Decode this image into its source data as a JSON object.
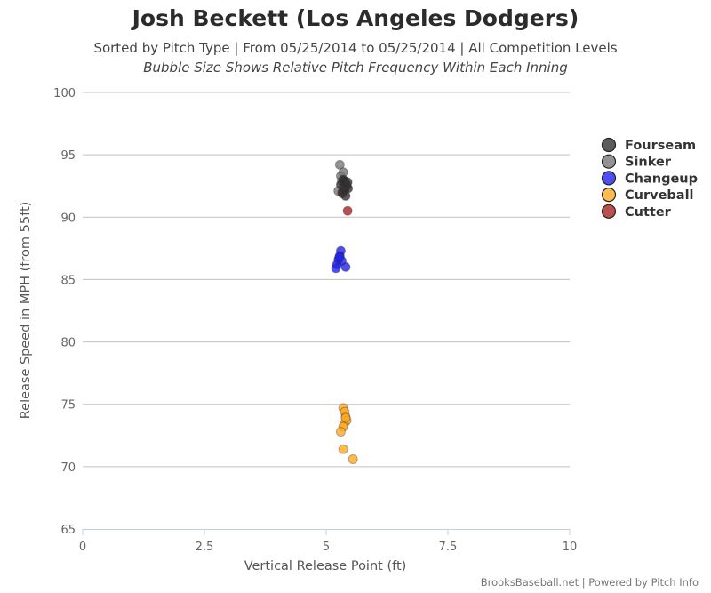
{
  "chart_data": {
    "type": "scatter",
    "title": "Josh Beckett (Los Angeles Dodgers)",
    "subtitle": "Sorted by Pitch Type | From 05/25/2014 to 05/25/2014 | All Competition Levels",
    "subtitle2": "Bubble Size Shows Relative Pitch Frequency Within Each Inning",
    "xlabel": "Vertical Release Point (ft)",
    "ylabel": "Release Speed in MPH (from 55ft)",
    "xlim": [
      0,
      10
    ],
    "ylim": [
      65,
      100
    ],
    "x_ticks": [
      "0",
      "2.5",
      "5",
      "7.5",
      "10"
    ],
    "y_ticks": [
      "65",
      "70",
      "75",
      "80",
      "85",
      "90",
      "95",
      "100"
    ],
    "grid": "horizontal",
    "legend_position": "right",
    "series": [
      {
        "name": "Fourseam",
        "color": "#333333",
        "points": [
          [
            5.35,
            93.0
          ],
          [
            5.4,
            92.7
          ],
          [
            5.42,
            92.5
          ],
          [
            5.38,
            92.9
          ],
          [
            5.45,
            92.3
          ],
          [
            5.3,
            92.6
          ],
          [
            5.33,
            92.0
          ],
          [
            5.4,
            91.7
          ],
          [
            5.36,
            92.4
          ],
          [
            5.44,
            92.8
          ]
        ]
      },
      {
        "name": "Sinker",
        "color": "#777777",
        "points": [
          [
            5.28,
            94.2
          ],
          [
            5.3,
            93.3
          ],
          [
            5.32,
            92.9
          ],
          [
            5.25,
            92.1
          ],
          [
            5.35,
            93.6
          ]
        ]
      },
      {
        "name": "Changeup",
        "color": "#2222ee",
        "points": [
          [
            5.3,
            87.3
          ],
          [
            5.28,
            86.9
          ],
          [
            5.25,
            86.6
          ],
          [
            5.22,
            86.2
          ],
          [
            5.2,
            85.9
          ],
          [
            5.4,
            86.0
          ],
          [
            5.32,
            86.5
          ],
          [
            5.27,
            86.8
          ]
        ]
      },
      {
        "name": "Curveball",
        "color": "#ffaa22",
        "points": [
          [
            5.35,
            74.7
          ],
          [
            5.38,
            74.4
          ],
          [
            5.4,
            74.0
          ],
          [
            5.42,
            73.7
          ],
          [
            5.37,
            73.4
          ],
          [
            5.35,
            73.2
          ],
          [
            5.3,
            72.8
          ],
          [
            5.35,
            71.4
          ],
          [
            5.55,
            70.6
          ],
          [
            5.4,
            73.9
          ]
        ]
      },
      {
        "name": "Cutter",
        "color": "#aa2222",
        "points": [
          [
            5.44,
            90.5
          ],
          [
            5.33,
            91.9
          ],
          [
            5.38,
            92.2
          ]
        ]
      }
    ]
  },
  "credits": "BrooksBaseball.net | Powered by Pitch Info"
}
